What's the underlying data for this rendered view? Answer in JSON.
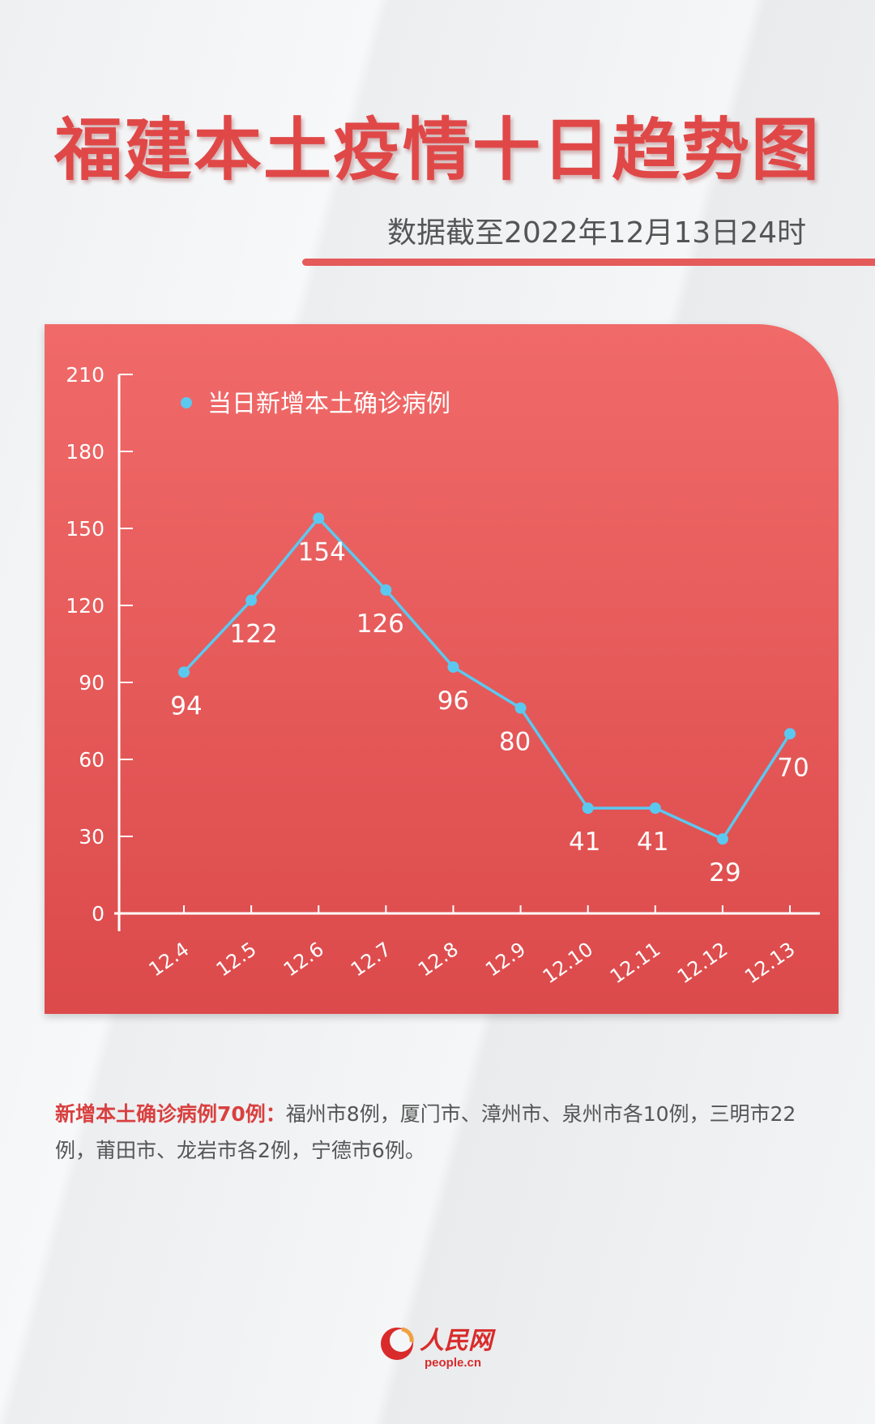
{
  "header": {
    "title": "福建本土疫情十日趋势图",
    "subtitle": "数据截至2022年12月13日24时"
  },
  "colors": {
    "title": "#e04848",
    "card_top": "#f06a69",
    "card_bottom": "#dc4a4b",
    "series": "#5bc8f0",
    "axis": "#ffffff"
  },
  "chart_data": {
    "type": "line",
    "categories": [
      "12.4",
      "12.5",
      "12.6",
      "12.7",
      "12.8",
      "12.9",
      "12.10",
      "12.11",
      "12.12",
      "12.13"
    ],
    "series": [
      {
        "name": "当日新增本土确诊病例",
        "values": [
          94,
          122,
          154,
          126,
          96,
          80,
          41,
          41,
          29,
          70
        ]
      }
    ],
    "yticks": [
      0,
      30,
      60,
      90,
      120,
      150,
      180,
      210
    ],
    "ylim": [
      0,
      210
    ],
    "grid": false,
    "legend": "top-left"
  },
  "note": {
    "lead": "新增本土确诊病例70例：",
    "body": "福州市8例，厦门市、漳州市、泉州市各10例，三明市22例，莆田市、龙岩市各2例，宁德市6例。"
  },
  "logo": {
    "name": "人民网",
    "url_text": "people.cn"
  }
}
